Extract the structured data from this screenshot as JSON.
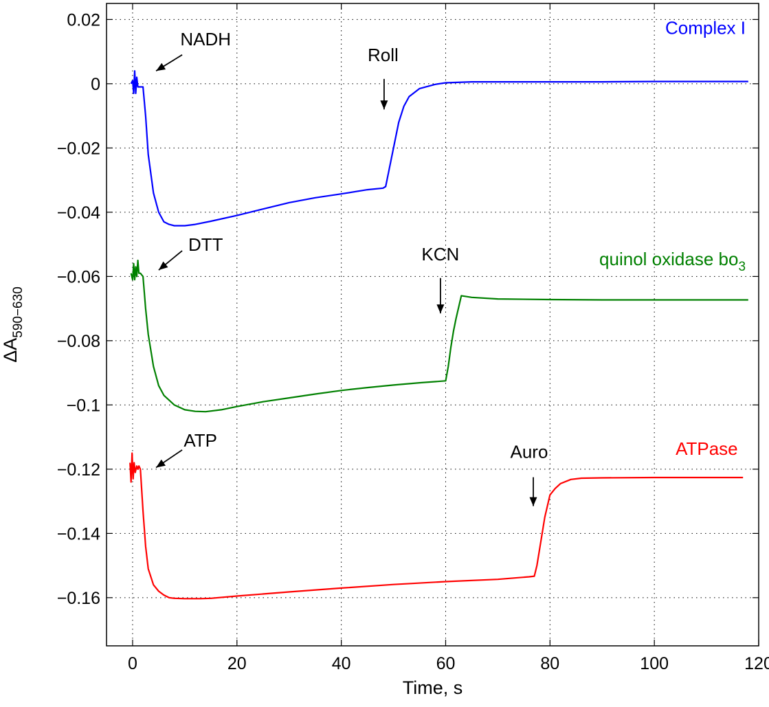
{
  "chart_data": {
    "type": "line",
    "title": "",
    "xlabel": "Time, s",
    "ylabel": {
      "main": "ΔA",
      "sub": "590−630"
    },
    "xlim": [
      -5,
      120
    ],
    "ylim": [
      -0.175,
      0.025
    ],
    "x_ticks": [
      0,
      20,
      40,
      60,
      80,
      100,
      120
    ],
    "x_tick_labels": [
      "0",
      "20",
      "40",
      "60",
      "80",
      "100",
      "120"
    ],
    "y_ticks": [
      0.02,
      0,
      -0.02,
      -0.04,
      -0.06,
      -0.08,
      -0.1,
      -0.12,
      -0.14,
      -0.16
    ],
    "y_tick_labels": [
      "0.02",
      "0",
      "−0.02",
      "−0.04",
      "−0.06",
      "−0.08",
      "−0.1",
      "−0.12",
      "−0.14",
      "−0.16"
    ],
    "grid": true,
    "series": [
      {
        "name": "Complex I",
        "name_parts": {
          "main": "Complex I",
          "sub": ""
        },
        "color": "#0000ff",
        "x": [
          -0.3,
          0,
          0.2,
          0.4,
          0.6,
          0.8,
          1.0,
          1.2,
          1.6,
          2.0,
          2.5,
          3.0,
          4.0,
          5.0,
          6.0,
          7.0,
          8.0,
          10.0,
          12.0,
          15.0,
          20.0,
          25.0,
          30.0,
          35.0,
          40.0,
          45.0,
          48.0,
          48.5,
          49.0,
          50.0,
          51.0,
          52.0,
          53.0,
          55.0,
          58.0,
          60.0,
          65.0,
          70.0,
          80.0,
          90.0,
          100.0,
          110.0,
          118.0
        ],
        "y": [
          0.0,
          0.001,
          -0.003,
          0.004,
          -0.003,
          0.002,
          -0.001,
          -0.001,
          -0.001,
          -0.001,
          -0.01,
          -0.022,
          -0.034,
          -0.04,
          -0.043,
          -0.0438,
          -0.0442,
          -0.0442,
          -0.0438,
          -0.0428,
          -0.041,
          -0.039,
          -0.037,
          -0.0355,
          -0.0343,
          -0.033,
          -0.0325,
          -0.032,
          -0.028,
          -0.02,
          -0.012,
          -0.007,
          -0.004,
          -0.0015,
          -0.0002,
          0.0003,
          0.0006,
          0.0006,
          0.0006,
          0.0006,
          0.0007,
          0.0007,
          0.0007
        ]
      },
      {
        "name": "quinol oxidase bo3",
        "name_parts": {
          "main": "quinol oxidase bo",
          "sub": "3"
        },
        "color": "#008000",
        "x": [
          -0.3,
          0,
          0.2,
          0.4,
          0.6,
          0.8,
          1.0,
          1.2,
          1.5,
          2.0,
          2.5,
          3.0,
          4.0,
          5.0,
          6.0,
          8.0,
          10.0,
          12.0,
          14.0,
          17.0,
          20.0,
          25.0,
          30.0,
          35.0,
          40.0,
          45.0,
          50.0,
          55.0,
          60.0,
          60.5,
          61.0,
          61.5,
          62.0,
          63.0,
          65.0,
          70.0,
          80.0,
          90.0,
          100.0,
          110.0,
          118.0
        ],
        "y": [
          -0.059,
          -0.061,
          -0.056,
          -0.061,
          -0.057,
          -0.06,
          -0.055,
          -0.059,
          -0.059,
          -0.06,
          -0.07,
          -0.078,
          -0.088,
          -0.094,
          -0.097,
          -0.1,
          -0.1015,
          -0.102,
          -0.1021,
          -0.1015,
          -0.1005,
          -0.099,
          -0.0978,
          -0.0966,
          -0.0955,
          -0.0946,
          -0.0938,
          -0.0931,
          -0.0925,
          -0.088,
          -0.082,
          -0.077,
          -0.073,
          -0.066,
          -0.0665,
          -0.067,
          -0.0672,
          -0.0673,
          -0.0673,
          -0.0673,
          -0.0673
        ]
      },
      {
        "name": "ATPase",
        "name_parts": {
          "main": "ATPase",
          "sub": ""
        },
        "color": "#ff0000",
        "x": [
          -0.5,
          -0.3,
          -0.1,
          0.1,
          0.3,
          0.5,
          0.8,
          1.0,
          1.2,
          1.5,
          2.0,
          2.5,
          3.0,
          4.0,
          5.0,
          6.0,
          7.0,
          8.0,
          10.0,
          13.0,
          15.0,
          20.0,
          30.0,
          40.0,
          50.0,
          60.0,
          70.0,
          76.0,
          77.0,
          77.5,
          78.0,
          78.5,
          79.0,
          80.0,
          81.0,
          82.0,
          84.0,
          86.0,
          90.0,
          100.0,
          110.0,
          117.0
        ],
        "y": [
          -0.118,
          -0.124,
          -0.115,
          -0.123,
          -0.118,
          -0.121,
          -0.119,
          -0.12,
          -0.119,
          -0.12,
          -0.133,
          -0.144,
          -0.151,
          -0.156,
          -0.158,
          -0.1592,
          -0.16,
          -0.1602,
          -0.1603,
          -0.1603,
          -0.1602,
          -0.1595,
          -0.1582,
          -0.157,
          -0.1559,
          -0.155,
          -0.1543,
          -0.1535,
          -0.1533,
          -0.15,
          -0.145,
          -0.14,
          -0.135,
          -0.128,
          -0.126,
          -0.1245,
          -0.1232,
          -0.1228,
          -0.1227,
          -0.1226,
          -0.1226,
          -0.1226
        ]
      }
    ],
    "annotations": [
      {
        "text": "NADH",
        "x": 14,
        "y": 0.012,
        "arrow_from": [
          9.5,
          0.009
        ],
        "arrow_to": [
          4.5,
          0.004
        ]
      },
      {
        "text": "Roll",
        "x": 48,
        "y": 0.007,
        "arrow_from": [
          48.2,
          0.0015
        ],
        "arrow_to": [
          48.2,
          -0.008
        ]
      },
      {
        "text": "DTT",
        "x": 14,
        "y": -0.052,
        "arrow_from": [
          9.5,
          -0.052
        ],
        "arrow_to": [
          5.0,
          -0.058
        ]
      },
      {
        "text": "KCN",
        "x": 59,
        "y": -0.055,
        "arrow_from": [
          59.0,
          -0.0605
        ],
        "arrow_to": [
          59.0,
          -0.0715
        ]
      },
      {
        "text": "ATP",
        "x": 13,
        "y": -0.113,
        "arrow_from": [
          9.5,
          -0.114
        ],
        "arrow_to": [
          4.5,
          -0.1195
        ]
      },
      {
        "text": "Auro",
        "x": 76,
        "y": -0.1165,
        "arrow_from": [
          76.8,
          -0.1225
        ],
        "arrow_to": [
          76.8,
          -0.1315
        ]
      }
    ],
    "series_label_positions": [
      {
        "series": 0,
        "x": 117.5,
        "y": 0.0155
      },
      {
        "series": 1,
        "x": 117.5,
        "y": -0.0565
      },
      {
        "series": 2,
        "x": 116.0,
        "y": -0.1155
      }
    ]
  }
}
